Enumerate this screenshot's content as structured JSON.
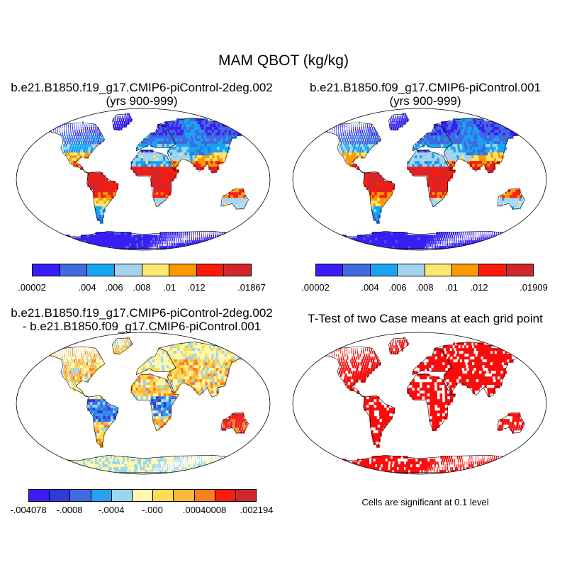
{
  "title": "MAM QBOT (kg/kg)",
  "panels": {
    "case1": {
      "title": "b.e21.B1850.f19_g17.CMIP6-piControl-2deg.002",
      "subtitle": "(yrs 900-999)",
      "colorbar_labels": [
        ".00002",
        ".004",
        ".006",
        ".008",
        ".01",
        ".012",
        ".01867"
      ]
    },
    "case2": {
      "title": "b.e21.B1850.f09_g17.CMIP6-piControl.001",
      "subtitle": "(yrs 900-999)",
      "colorbar_labels": [
        ".00002",
        ".004",
        ".006",
        ".008",
        ".01",
        ".012",
        ".01909"
      ]
    },
    "diff": {
      "title": "b.e21.B1850.f19_g17.CMIP6-piControl-2deg.002",
      "subtitle": "- b.e21.B1850.f09_g17.CMIP6-piControl.001",
      "colorbar_labels": [
        "-.004078",
        "-.0008",
        "-.0004",
        "-.000",
        ".0004",
        ".0008",
        ".002194"
      ]
    },
    "ttest": {
      "title": "T-Test of two Case means at each grid point",
      "note": "Cells are significant at 0.1 level"
    }
  },
  "colors": {
    "abs_scale": [
      "#3a1df5",
      "#4169e1",
      "#17a4f0",
      "#a4d3ef",
      "#fce76f",
      "#fb9902",
      "#fb1b0f",
      "#d1262d"
    ],
    "diff_scale": [
      "#3a1df5",
      "#2e3bdc",
      "#4169e1",
      "#2aa0f2",
      "#99d6f0",
      "#fdf7b0",
      "#fcdc56",
      "#fbb73b",
      "#fb7f1d",
      "#fb1b0f",
      "#d1262d"
    ],
    "ocean": "#ffffff",
    "significant": "#fb0c0c"
  }
}
